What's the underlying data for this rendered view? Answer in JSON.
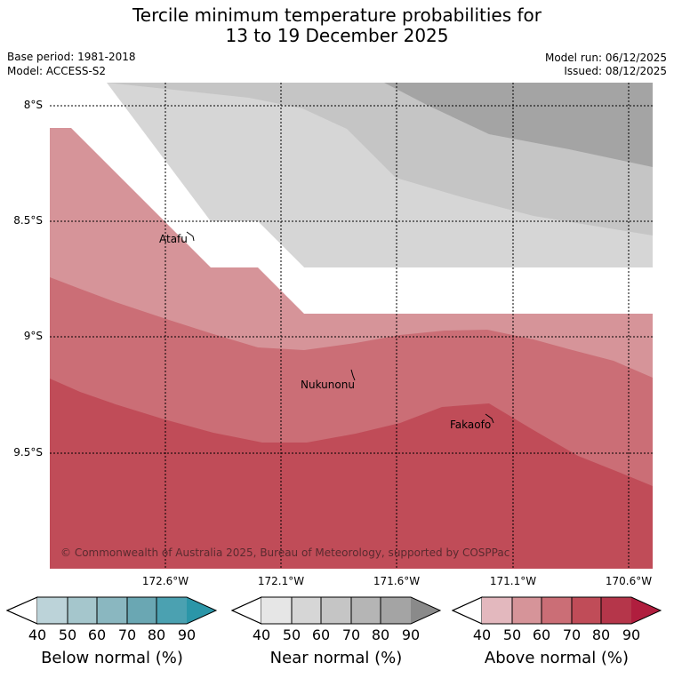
{
  "header": {
    "title_line1": "Tercile minimum temperature probabilities for",
    "title_line2": "13 to 19 December 2025",
    "base_period": "Base period: 1981-2018",
    "model": "Model: ACCESS-S2",
    "model_run": "Model run: 06/12/2025",
    "issued": "Issued: 08/12/2025"
  },
  "map": {
    "lat_labels": [
      "8°S",
      "8.5°S",
      "9°S",
      "9.5°S"
    ],
    "lon_labels": [
      "172.6°W",
      "172.1°W",
      "171.6°W",
      "171.1°W",
      "170.6°W"
    ],
    "places": [
      "Atafu",
      "Nukunonu",
      "Fakaofo"
    ],
    "copyright": "© Commonwealth of Australia 2025, Bureau of Meteorology, supported by COSPPac"
  },
  "legend": {
    "ticks": [
      "40",
      "50",
      "60",
      "70",
      "80",
      "90"
    ],
    "below": {
      "title": "Below normal (%)",
      "colors": [
        "#ffffff",
        "#bcd3d9",
        "#a5c6cc",
        "#8ab7c0",
        "#6aa7b3",
        "#4ba1b1",
        "#2b96a8"
      ]
    },
    "near": {
      "title": "Near normal (%)",
      "colors": [
        "#ffffff",
        "#e6e6e6",
        "#d6d6d6",
        "#c5c5c5",
        "#b5b5b5",
        "#a4a4a4",
        "#8a8a8a"
      ]
    },
    "above": {
      "title": "Above normal (%)",
      "colors": [
        "#ffffff",
        "#e3b8be",
        "#d69499",
        "#cb6e76",
        "#c04c58",
        "#b5364a",
        "#b01e3e"
      ]
    }
  }
}
